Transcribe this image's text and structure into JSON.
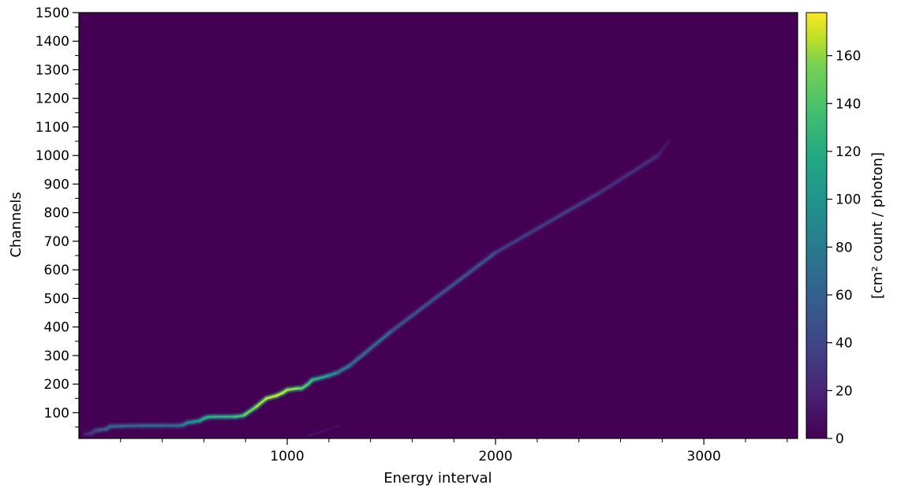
{
  "chart_data": {
    "type": "heatmap",
    "title": "",
    "xlabel": "Energy interval",
    "ylabel": "Channels",
    "xlim": [
      0,
      3450
    ],
    "ylim": [
      10,
      1500
    ],
    "xticks_major": [
      1000,
      2000,
      3000
    ],
    "xtick_labels": [
      "1000",
      "2000",
      "3000"
    ],
    "yticks_major": [
      100,
      200,
      300,
      400,
      500,
      600,
      700,
      800,
      900,
      1000,
      1100,
      1200,
      1300,
      1400,
      1500
    ],
    "ytick_labels": [
      "100",
      "200",
      "300",
      "400",
      "500",
      "600",
      "700",
      "800",
      "900",
      "1000",
      "1100",
      "1200",
      "1300",
      "1400",
      "1500"
    ],
    "colormap": "viridis",
    "background_color": "#440154",
    "colorbar": {
      "label": "[cm² count / photon]",
      "range": [
        0,
        178
      ],
      "ticks": [
        0,
        20,
        40,
        60,
        80,
        100,
        120,
        140,
        160
      ],
      "tick_labels": [
        "0",
        "20",
        "40",
        "60",
        "80",
        "100",
        "120",
        "140",
        "160"
      ]
    },
    "ridge": {
      "description_points_note": "main diagonal response ridge: energy interval vs channel with intensity",
      "x": [
        30,
        60,
        80,
        100,
        130,
        150,
        200,
        300,
        400,
        480,
        500,
        520,
        550,
        580,
        600,
        620,
        650,
        700,
        750,
        790,
        800,
        850,
        900,
        950,
        980,
        1000,
        1050,
        1070,
        1100,
        1120,
        1150,
        1200,
        1240,
        1300,
        1500,
        2000,
        2500,
        2780,
        2800,
        2830
      ],
      "y": [
        25,
        28,
        38,
        40,
        42,
        52,
        53,
        55,
        55,
        55,
        57,
        65,
        68,
        72,
        80,
        85,
        86,
        86,
        86,
        90,
        95,
        120,
        150,
        160,
        170,
        180,
        185,
        185,
        200,
        215,
        220,
        230,
        240,
        265,
        385,
        660,
        870,
        1000,
        1020,
        1050
      ],
      "intensity": [
        20,
        25,
        40,
        45,
        55,
        60,
        60,
        60,
        60,
        60,
        70,
        80,
        90,
        100,
        110,
        115,
        115,
        115,
        120,
        130,
        140,
        150,
        165,
        170,
        165,
        160,
        150,
        140,
        130,
        120,
        115,
        100,
        80,
        70,
        55,
        38,
        28,
        20,
        12,
        6
      ]
    },
    "faint_ridge": {
      "x": [
        1100,
        1150,
        1200,
        1250
      ],
      "y": [
        20,
        30,
        42,
        55
      ],
      "intensity": [
        8,
        10,
        8,
        5
      ]
    },
    "grid": false,
    "legend": "none"
  }
}
